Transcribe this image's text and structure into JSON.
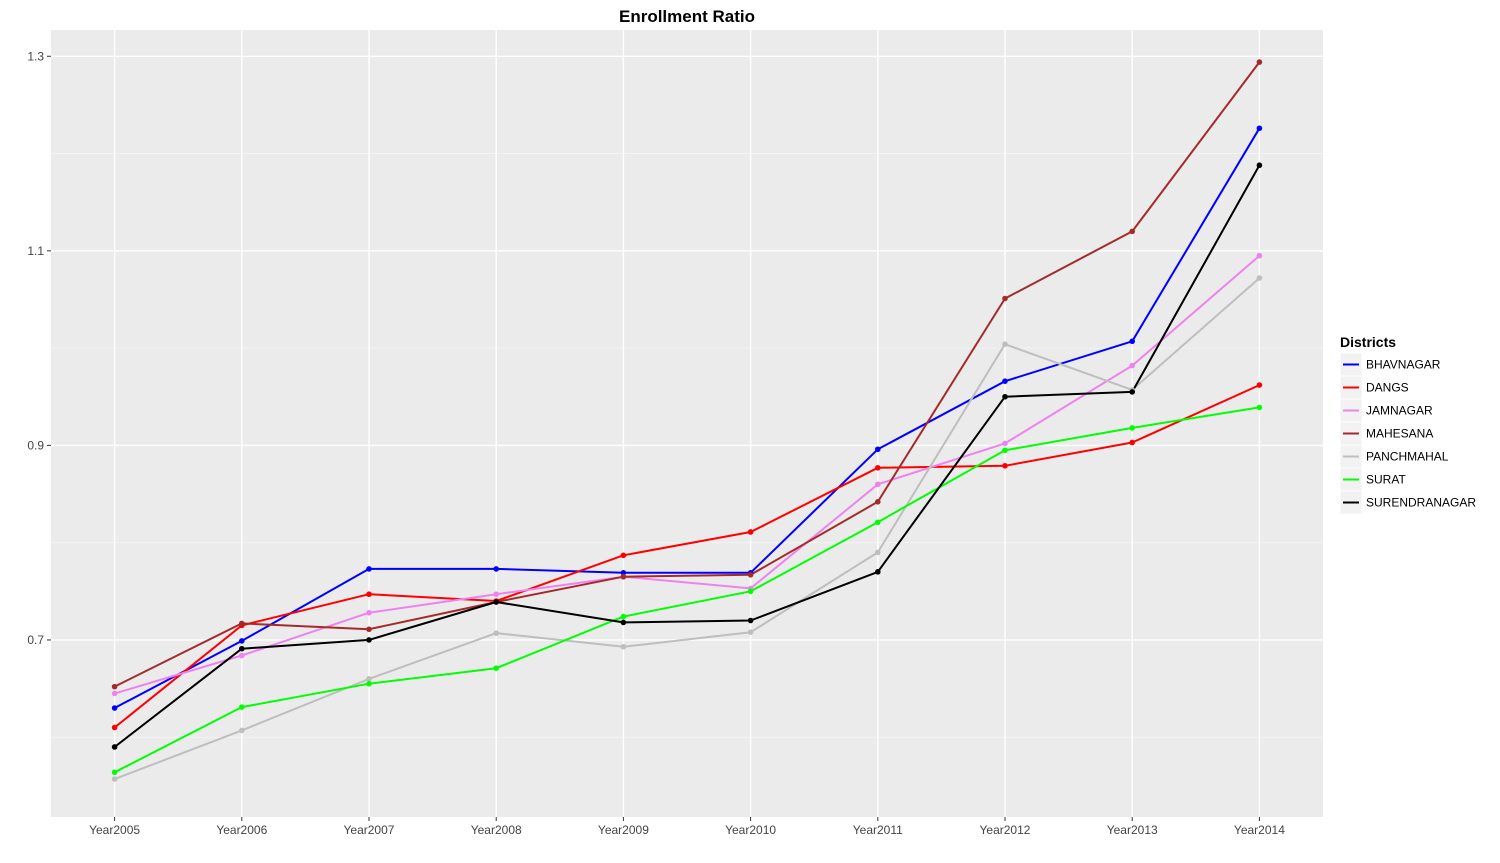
{
  "chart_data": {
    "type": "line",
    "title": "Enrollment Ratio",
    "xlabel": "",
    "ylabel": "",
    "categories": [
      "Year2005",
      "Year2006",
      "Year2007",
      "Year2008",
      "Year2009",
      "Year2010",
      "Year2011",
      "Year2012",
      "Year2013",
      "Year2014"
    ],
    "ylim": [
      0.518,
      1.327
    ],
    "yticks": [
      0.7,
      0.9,
      1.1,
      1.3
    ],
    "ytick_labels": [
      "0.7",
      "0.9",
      "1.1",
      "1.3"
    ],
    "grid": true,
    "legend": {
      "title": "Districts",
      "position": "right"
    },
    "series": [
      {
        "name": "BHAVNAGAR",
        "color": "#0000ff",
        "values": [
          0.63,
          0.699,
          0.773,
          0.773,
          0.769,
          0.769,
          0.896,
          0.966,
          1.007,
          1.226
        ]
      },
      {
        "name": "DANGS",
        "color": "#ff0000",
        "values": [
          0.61,
          0.715,
          0.747,
          0.74,
          0.787,
          0.811,
          0.877,
          0.879,
          0.903,
          0.962
        ]
      },
      {
        "name": "JAMNAGAR",
        "color": "#ee82ee",
        "values": [
          0.645,
          0.684,
          0.728,
          0.747,
          0.765,
          0.753,
          0.86,
          0.902,
          0.982,
          1.095
        ]
      },
      {
        "name": "MAHESANA",
        "color": "#a52a2a",
        "values": [
          0.652,
          0.717,
          0.711,
          0.739,
          0.765,
          0.767,
          0.842,
          1.051,
          1.12,
          1.294
        ]
      },
      {
        "name": "PANCHMAHAL",
        "color": "#bebebe",
        "values": [
          0.557,
          0.607,
          0.66,
          0.707,
          0.693,
          0.708,
          0.79,
          1.004,
          0.957,
          1.072
        ]
      },
      {
        "name": "SURAT",
        "color": "#00ff00",
        "values": [
          0.564,
          0.631,
          0.655,
          0.671,
          0.724,
          0.75,
          0.821,
          0.895,
          0.918,
          0.939
        ]
      },
      {
        "name": "SURENDRANAGAR",
        "color": "#000000",
        "values": [
          0.59,
          0.691,
          0.7,
          0.739,
          0.718,
          0.72,
          0.77,
          0.95,
          0.955,
          1.188
        ]
      }
    ]
  }
}
